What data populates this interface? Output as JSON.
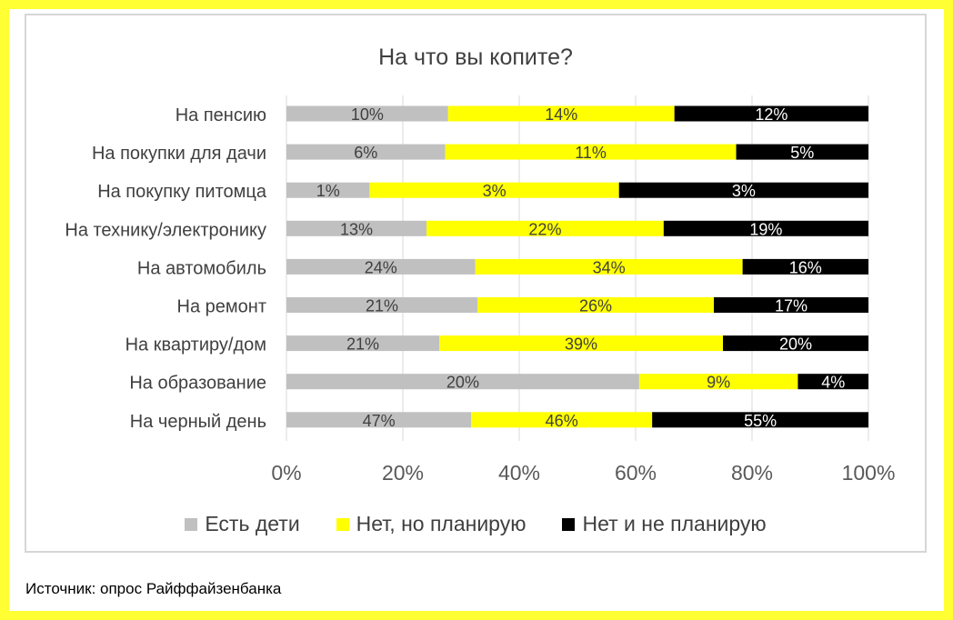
{
  "chart_data": {
    "type": "bar",
    "orientation": "horizontal",
    "stacked": "percent",
    "title": "На что вы копите?",
    "categories": [
      "На пенсию",
      "На покупки для дачи",
      "На покупку питомца",
      "На технику/электронику",
      "На автомобиль",
      "На ремонт",
      "На квартиру/дом",
      "На образование",
      "На черный день"
    ],
    "series": [
      {
        "name": "Есть дети",
        "color": "#c0c0c0",
        "values": [
          10,
          6,
          1,
          13,
          24,
          21,
          21,
          20,
          47
        ],
        "labels": [
          "10%",
          "6%",
          "1%",
          "13%",
          "24%",
          "21%",
          "21%",
          "20%",
          "47%"
        ]
      },
      {
        "name": "Нет, но планирую",
        "color": "#ffff00",
        "values": [
          14,
          11,
          3,
          22,
          34,
          26,
          39,
          9,
          46
        ],
        "labels": [
          "14%",
          "11%",
          "3%",
          "22%",
          "34%",
          "26%",
          "39%",
          "9%",
          "46%"
        ]
      },
      {
        "name": "Нет и не планирую",
        "color": "#000000",
        "values": [
          12,
          5,
          3,
          19,
          16,
          17,
          20,
          4,
          55
        ],
        "labels": [
          "12%",
          "5%",
          "3%",
          "19%",
          "16%",
          "17%",
          "20%",
          "4%",
          "55%"
        ]
      }
    ],
    "x_ticks": [
      "0%",
      "20%",
      "40%",
      "60%",
      "80%",
      "100%"
    ],
    "xlim": [
      0,
      100
    ],
    "legend_position": "bottom",
    "grid": "vertical"
  },
  "source": "Источник: опрос Райффайзенбанка"
}
